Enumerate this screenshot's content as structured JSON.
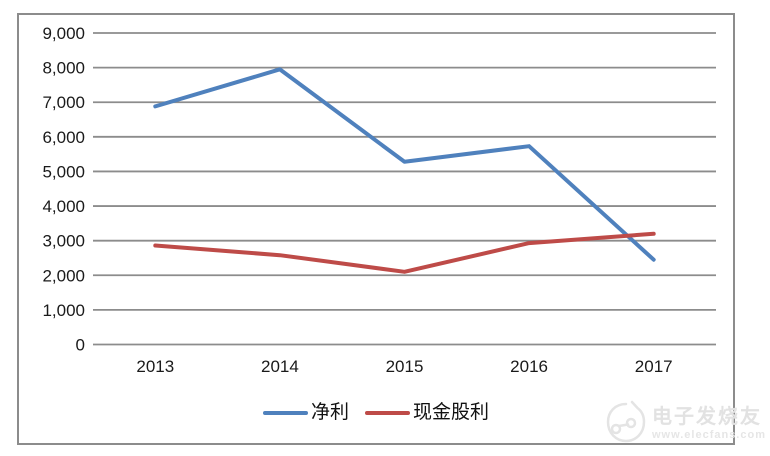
{
  "chart_data": {
    "type": "line",
    "categories": [
      "2013",
      "2014",
      "2015",
      "2016",
      "2017"
    ],
    "series": [
      {
        "name": "净利",
        "color": "#4F81BD",
        "values": [
          6880,
          7950,
          5280,
          5730,
          2450
        ]
      },
      {
        "name": "现金股利",
        "color": "#BE4B48",
        "values": [
          2860,
          2580,
          2100,
          2930,
          3200
        ]
      }
    ],
    "ylim": [
      0,
      9000
    ],
    "y_tick_step": 1000,
    "y_tick_labels": [
      "0",
      "1,000",
      "2,000",
      "3,000",
      "4,000",
      "5,000",
      "6,000",
      "7,000",
      "8,000",
      "9,000"
    ],
    "grid": true,
    "legend_position": "bottom",
    "title": "",
    "xlabel": "",
    "ylabel": ""
  },
  "colors": {
    "gridline": "#8c8c8c",
    "frame_border": "#8c8c8c",
    "tick_text": "#1a1a1a"
  },
  "watermark": {
    "brand": "电子发烧友",
    "url": "www.elecfans.com"
  }
}
